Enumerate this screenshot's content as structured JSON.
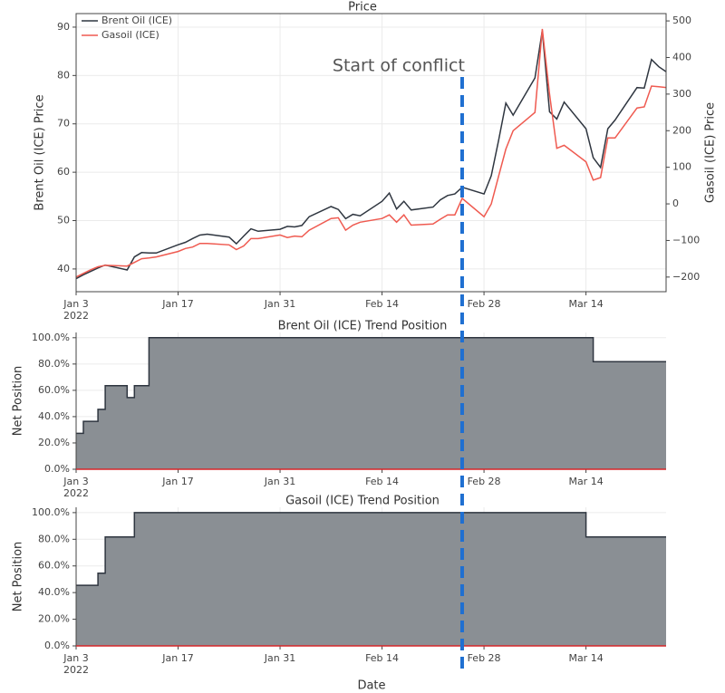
{
  "chart_data": [
    {
      "type": "line",
      "title": "Price",
      "ylabel": "Brent Oil (ICE) Price",
      "y2label": "Gasoil (ICE) Price",
      "legend": "top-left",
      "grid": true,
      "x": [
        "2022-01-03",
        "2022-01-04",
        "2022-01-05",
        "2022-01-06",
        "2022-01-07",
        "2022-01-10",
        "2022-01-11",
        "2022-01-12",
        "2022-01-13",
        "2022-01-14",
        "2022-01-17",
        "2022-01-18",
        "2022-01-19",
        "2022-01-20",
        "2022-01-21",
        "2022-01-24",
        "2022-01-25",
        "2022-01-26",
        "2022-01-27",
        "2022-01-28",
        "2022-01-31",
        "2022-02-01",
        "2022-02-02",
        "2022-02-03",
        "2022-02-04",
        "2022-02-07",
        "2022-02-08",
        "2022-02-09",
        "2022-02-10",
        "2022-02-11",
        "2022-02-14",
        "2022-02-15",
        "2022-02-16",
        "2022-02-17",
        "2022-02-18",
        "2022-02-21",
        "2022-02-22",
        "2022-02-23",
        "2022-02-24",
        "2022-02-25",
        "2022-02-28",
        "2022-03-01",
        "2022-03-02",
        "2022-03-03",
        "2022-03-04",
        "2022-03-07",
        "2022-03-08",
        "2022-03-09",
        "2022-03-10",
        "2022-03-11",
        "2022-03-14",
        "2022-03-15",
        "2022-03-16",
        "2022-03-17",
        "2022-03-18",
        "2022-03-21",
        "2022-03-22",
        "2022-03-23",
        "2022-03-24",
        "2022-03-25"
      ],
      "series": [
        {
          "name": "Brent Oil (ICE)",
          "color": "#2f3640",
          "values": [
            38.0,
            38.8,
            39.5,
            40.2,
            40.8,
            39.8,
            42.5,
            43.4,
            43.3,
            43.3,
            45.0,
            45.5,
            46.3,
            47.0,
            47.2,
            46.6,
            45.2,
            46.8,
            48.3,
            47.8,
            48.2,
            48.8,
            48.7,
            49.0,
            50.8,
            52.9,
            52.3,
            50.4,
            51.3,
            51.0,
            54.0,
            55.7,
            52.4,
            54.0,
            52.2,
            52.8,
            54.3,
            55.2,
            55.5,
            56.9,
            55.5,
            59.3,
            66.5,
            74.3,
            71.8,
            79.5,
            89.3,
            72.5,
            71.0,
            74.5,
            69.0,
            63.0,
            61.0,
            69.0,
            70.8,
            77.5,
            77.4,
            83.3,
            81.8,
            80.8
          ]
        },
        {
          "name": "Gasoil (ICE)",
          "color": "#ef5a50",
          "axis": "y2",
          "values": [
            -200,
            -190,
            -180,
            -172,
            -168,
            -170,
            -160,
            -150,
            -148,
            -145,
            -130,
            -122,
            -118,
            -108,
            -108,
            -112,
            -125,
            -115,
            -95,
            -95,
            -85,
            -92,
            -88,
            -90,
            -72,
            -40,
            -38,
            -72,
            -58,
            -50,
            -40,
            -30,
            -50,
            -30,
            -58,
            -55,
            -42,
            -30,
            -30,
            15,
            -35,
            0,
            75,
            150,
            200,
            250,
            478,
            300,
            152,
            160,
            115,
            65,
            72,
            180,
            180,
            262,
            265,
            322,
            320,
            318
          ]
        }
      ],
      "xlim": [
        "2022-01-03",
        "2022-03-25"
      ],
      "xticks": [
        {
          "value": "2022-01-03",
          "label": "Jan 3",
          "sublabel": "2022"
        },
        {
          "value": "2022-01-17",
          "label": "Jan 17"
        },
        {
          "value": "2022-01-31",
          "label": "Jan 31"
        },
        {
          "value": "2022-02-14",
          "label": "Feb 14"
        },
        {
          "value": "2022-02-28",
          "label": "Feb 28"
        },
        {
          "value": "2022-03-14",
          "label": "Mar 14"
        }
      ],
      "ylim": [
        35.3,
        92.8
      ],
      "yticks": [
        40,
        50,
        60,
        70,
        80,
        90
      ],
      "y2lim": [
        -240,
        520
      ],
      "y2ticks": [
        {
          "value": -200,
          "label": "−200"
        },
        {
          "value": -100,
          "label": "−100"
        },
        0,
        100,
        200,
        300,
        400,
        500
      ],
      "annotations": [
        {
          "text": "Start of conflict",
          "x": "2022-02-25",
          "color": "#1f6fd1"
        }
      ]
    },
    {
      "type": "area",
      "line_shape": "hv",
      "title": "Brent Oil (ICE) Trend Position",
      "ylabel": "Net Position",
      "grid": true,
      "color": "#8a8f94",
      "line_color": "#2f3640",
      "baseline_color": "#d62728",
      "x": [
        "2022-01-03",
        "2022-01-04",
        "2022-01-06",
        "2022-01-07",
        "2022-01-10",
        "2022-01-11",
        "2022-01-13",
        "2022-03-15",
        "2022-03-25"
      ],
      "values": [
        27.3,
        36.4,
        45.5,
        63.6,
        54.5,
        63.6,
        100,
        81.8,
        81.8
      ],
      "xlim": [
        "2022-01-03",
        "2022-03-25"
      ],
      "xticks": [
        {
          "value": "2022-01-03",
          "label": "Jan 3",
          "sublabel": "2022"
        },
        {
          "value": "2022-01-17",
          "label": "Jan 17"
        },
        {
          "value": "2022-01-31",
          "label": "Jan 31"
        },
        {
          "value": "2022-02-14",
          "label": "Feb 14"
        },
        {
          "value": "2022-02-28",
          "label": "Feb 28"
        },
        {
          "value": "2022-03-14",
          "label": "Mar 14"
        }
      ],
      "ylim": [
        0,
        104
      ],
      "yticks": [
        {
          "value": 0,
          "label": "0.0%"
        },
        {
          "value": 20,
          "label": "20.0%"
        },
        {
          "value": 40,
          "label": "40.0%"
        },
        {
          "value": 60,
          "label": "60.0%"
        },
        {
          "value": 80,
          "label": "80.0%"
        },
        {
          "value": 100,
          "label": "100.0%"
        }
      ]
    },
    {
      "type": "area",
      "line_shape": "hv",
      "title": "Gasoil (ICE) Trend Position",
      "ylabel": "Net Position",
      "xlabel": "Date",
      "grid": true,
      "color": "#8a8f94",
      "line_color": "#2f3640",
      "baseline_color": "#d62728",
      "x": [
        "2022-01-03",
        "2022-01-06",
        "2022-01-07",
        "2022-01-11",
        "2022-03-14",
        "2022-03-25"
      ],
      "values": [
        45.5,
        54.5,
        81.8,
        100,
        81.8,
        81.8
      ],
      "xlim": [
        "2022-01-03",
        "2022-03-25"
      ],
      "xticks": [
        {
          "value": "2022-01-03",
          "label": "Jan 3",
          "sublabel": "2022"
        },
        {
          "value": "2022-01-17",
          "label": "Jan 17"
        },
        {
          "value": "2022-01-31",
          "label": "Jan 31"
        },
        {
          "value": "2022-02-14",
          "label": "Feb 14"
        },
        {
          "value": "2022-02-28",
          "label": "Feb 28"
        },
        {
          "value": "2022-03-14",
          "label": "Mar 14"
        }
      ],
      "ylim": [
        0,
        104
      ],
      "yticks": [
        {
          "value": 0,
          "label": "0.0%"
        },
        {
          "value": 20,
          "label": "20.0%"
        },
        {
          "value": 40,
          "label": "40.0%"
        },
        {
          "value": 60,
          "label": "60.0%"
        },
        {
          "value": 80,
          "label": "80.0%"
        },
        {
          "value": 100,
          "label": "100.0%"
        }
      ]
    }
  ]
}
